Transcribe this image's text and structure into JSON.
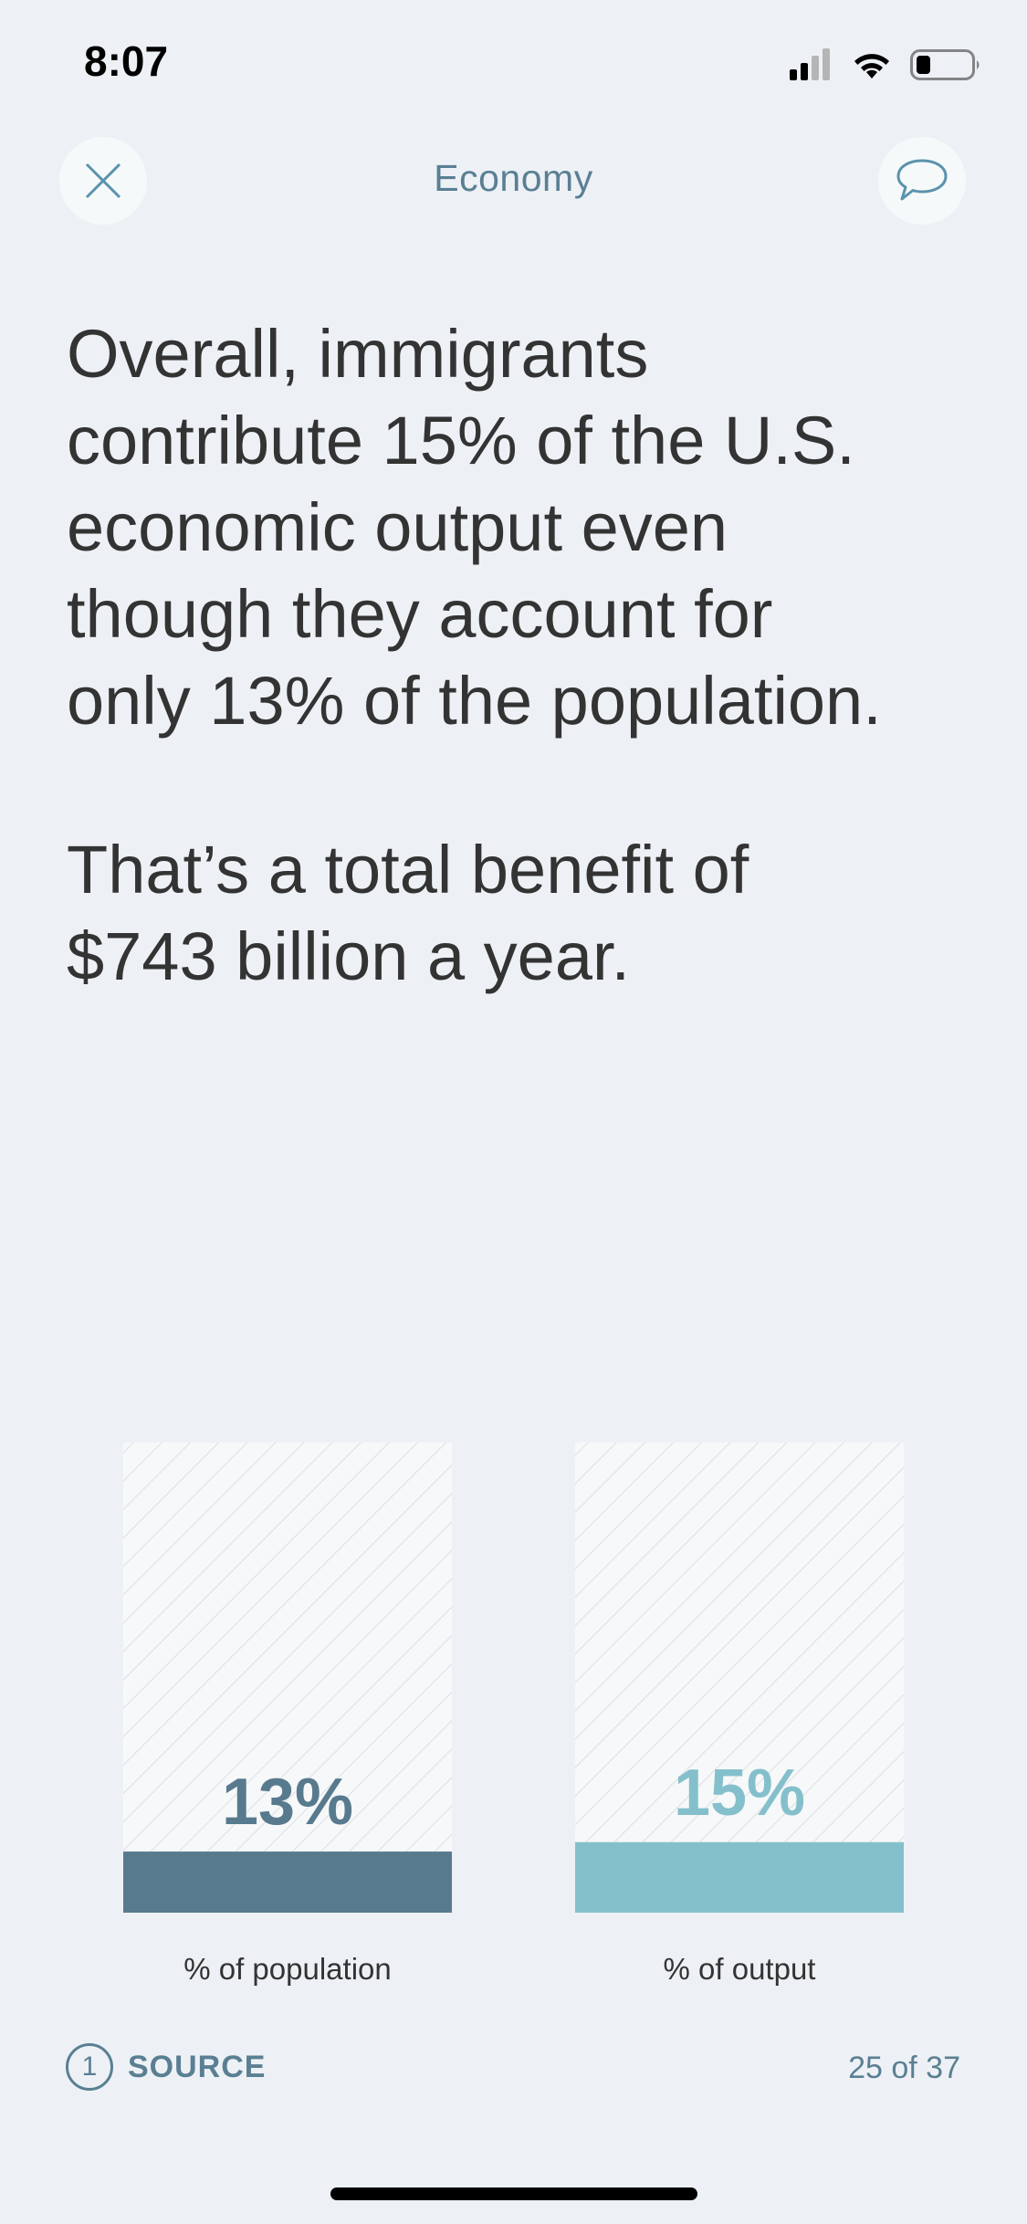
{
  "status_bar": {
    "time": "8:07",
    "icons": [
      "cellular-signal-icon",
      "wifi-icon",
      "battery-icon"
    ]
  },
  "nav": {
    "title": "Economy",
    "close_icon": "close-icon",
    "comment_icon": "comment-icon"
  },
  "content": {
    "headline_lines": [
      "Overall, immigrants",
      "contribute 15% of the U.S.",
      "economic output even",
      "though they account for",
      "only 13% of the population."
    ],
    "subline_lines": [
      "That’s a total benefit of",
      "$743 billion a year."
    ]
  },
  "chart_data": {
    "type": "bar",
    "categories": [
      "% of population",
      "% of output"
    ],
    "values": [
      13,
      15
    ],
    "value_labels": [
      "13%",
      "15%"
    ],
    "ylim": [
      0,
      100
    ],
    "colors": [
      "#587a8e",
      "#84c0cc"
    ],
    "label_colors": [
      "#587a8e",
      "#84c0cc"
    ]
  },
  "footer": {
    "source_count": "1",
    "source_label": "SOURCE",
    "page_counter": "25 of 37"
  },
  "colors": {
    "background": "#edf1f5",
    "accent": "#5a7f93",
    "text": "#333333"
  }
}
